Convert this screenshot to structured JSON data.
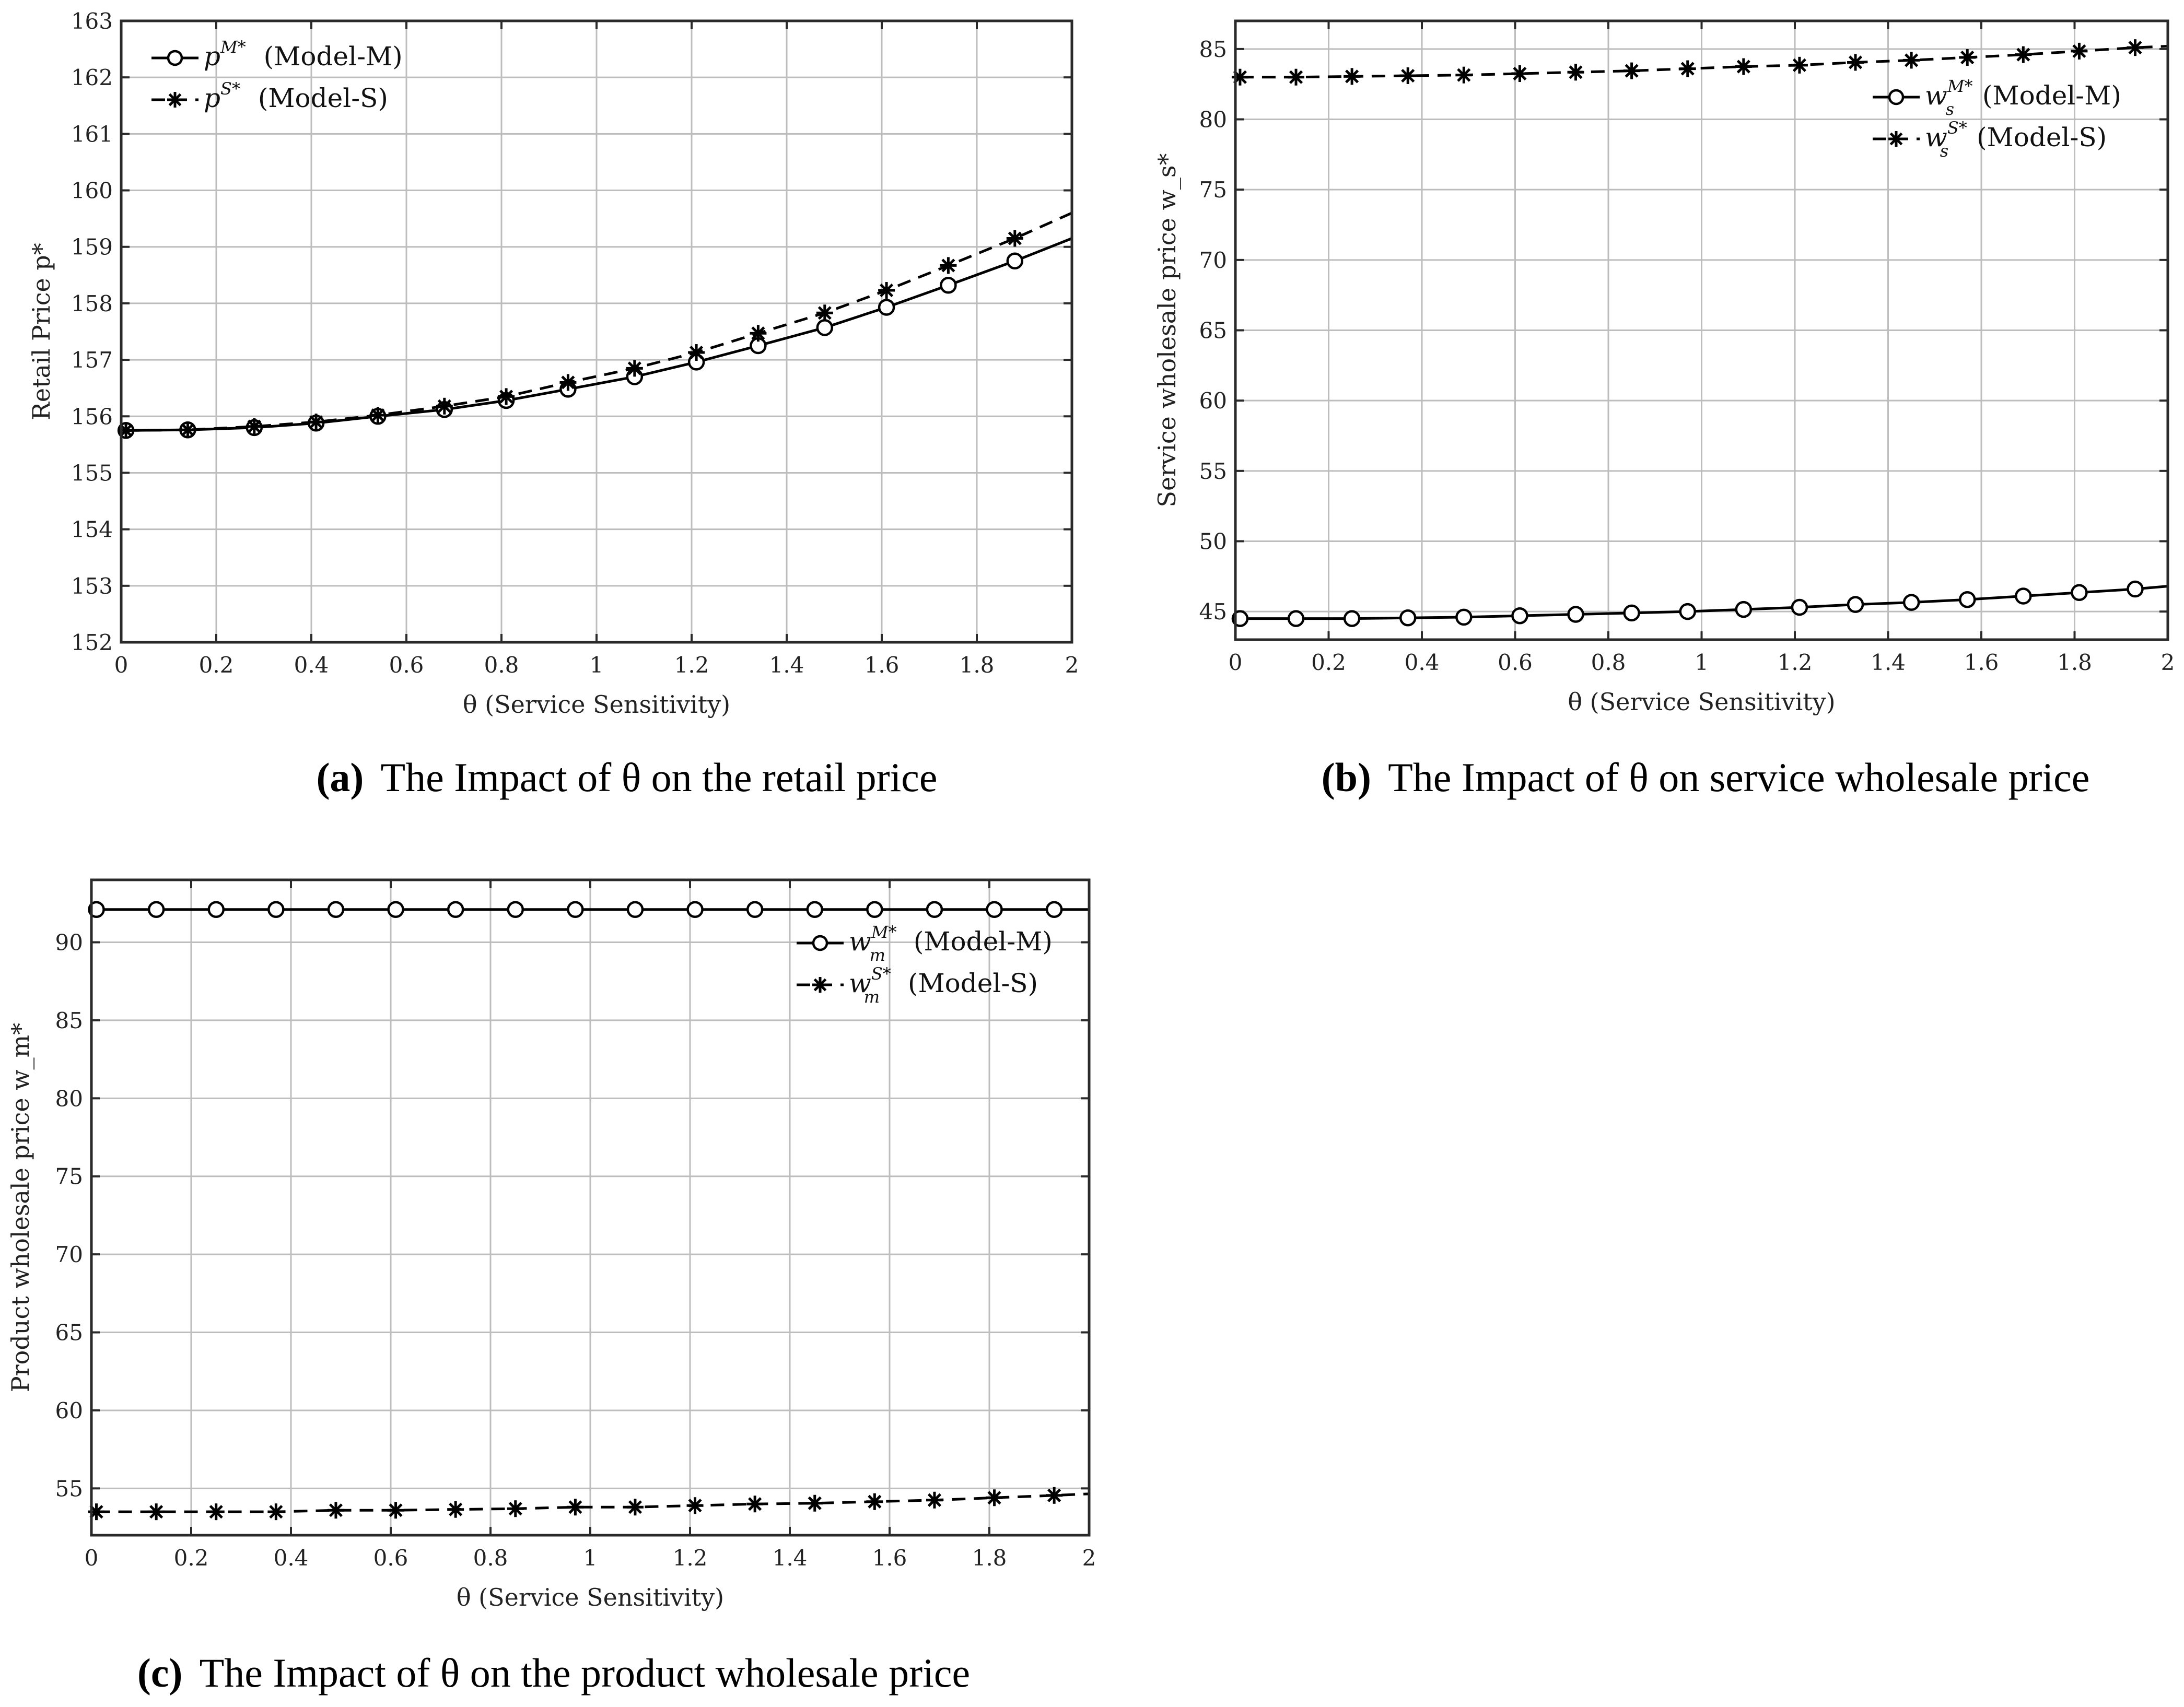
{
  "chart_data": [
    {
      "id": "a",
      "type": "line",
      "caption_label": "(a)",
      "caption_text": "The Impact of θ on the retail price",
      "title": "",
      "xlabel": "θ (Service Sensitivity)",
      "ylabel": "Retail Price p*",
      "xlim": [
        0,
        2
      ],
      "ylim": [
        152,
        163
      ],
      "xticks": [
        0,
        0.2,
        0.4,
        0.6,
        0.8,
        1,
        1.2,
        1.4,
        1.6,
        1.8,
        2
      ],
      "yticks": [
        152,
        153,
        154,
        155,
        156,
        157,
        158,
        159,
        160,
        161,
        162,
        163
      ],
      "grid": true,
      "legend_position": "upper left",
      "series": [
        {
          "name": "p^{M*} (Model-M)",
          "legend_symbol": "p",
          "legend_sup": "M*",
          "legend_sub": "",
          "legend_model": "(Model-M)",
          "marker": "circle",
          "linestyle": "solid",
          "x": [
            0.01,
            0.14,
            0.28,
            0.41,
            0.54,
            0.68,
            0.81,
            0.94,
            1.08,
            1.21,
            1.34,
            1.48,
            1.61,
            1.74,
            1.88,
            2.0
          ],
          "values": [
            155.75,
            155.76,
            155.8,
            155.88,
            156.0,
            156.12,
            156.28,
            156.48,
            156.7,
            156.96,
            157.25,
            157.57,
            157.93,
            158.32,
            158.75,
            159.15
          ],
          "marker_count": 15
        },
        {
          "name": "p^{S*} (Model-S)",
          "legend_symbol": "p",
          "legend_sup": "S*",
          "legend_sub": "",
          "legend_model": "(Model-S)",
          "marker": "star",
          "linestyle": "dashed",
          "x": [
            0.01,
            0.14,
            0.28,
            0.41,
            0.54,
            0.68,
            0.81,
            0.94,
            1.08,
            1.21,
            1.34,
            1.48,
            1.61,
            1.74,
            1.88,
            2.0
          ],
          "values": [
            155.75,
            155.76,
            155.82,
            155.9,
            156.02,
            156.18,
            156.35,
            156.6,
            156.85,
            157.13,
            157.47,
            157.83,
            158.23,
            158.67,
            159.15,
            159.6
          ],
          "marker_count": 15
        }
      ]
    },
    {
      "id": "b",
      "type": "line",
      "caption_label": "(b)",
      "caption_text": "The Impact of θ on service wholesale price",
      "title": "",
      "xlabel": "θ (Service Sensitivity)",
      "ylabel": "Service wholesale price w_s*",
      "xlim": [
        0,
        2
      ],
      "ylim": [
        43,
        87
      ],
      "xticks": [
        0,
        0.2,
        0.4,
        0.6,
        0.8,
        1,
        1.2,
        1.4,
        1.6,
        1.8,
        2
      ],
      "yticks": [
        45,
        50,
        55,
        60,
        65,
        70,
        75,
        80,
        85
      ],
      "grid": true,
      "legend_position": "upper right",
      "series": [
        {
          "name": "w_s^{M*} (Model-M)",
          "legend_symbol": "w",
          "legend_sup": "M*",
          "legend_sub": "s",
          "legend_model": "(Model-M)",
          "marker": "circle",
          "linestyle": "solid",
          "x": [
            0.01,
            0.13,
            0.25,
            0.37,
            0.49,
            0.61,
            0.73,
            0.85,
            0.97,
            1.09,
            1.21,
            1.33,
            1.45,
            1.57,
            1.69,
            1.81,
            1.93,
            2.0
          ],
          "values": [
            44.5,
            44.5,
            44.5,
            44.55,
            44.6,
            44.7,
            44.8,
            44.9,
            45.0,
            45.15,
            45.3,
            45.5,
            45.65,
            45.85,
            46.1,
            46.35,
            46.6,
            46.8
          ],
          "marker_count": 17
        },
        {
          "name": "w_s^{S*} (Model-S)",
          "legend_symbol": "w",
          "legend_sup": "S*",
          "legend_sub": "s",
          "legend_model": "(Model-S)",
          "marker": "star",
          "linestyle": "dashed",
          "x": [
            0.01,
            0.13,
            0.25,
            0.37,
            0.49,
            0.61,
            0.73,
            0.85,
            0.97,
            1.09,
            1.21,
            1.33,
            1.45,
            1.57,
            1.69,
            1.81,
            1.93,
            2.0
          ],
          "values": [
            83.0,
            83.0,
            83.05,
            83.1,
            83.15,
            83.25,
            83.35,
            83.45,
            83.6,
            83.75,
            83.85,
            84.05,
            84.2,
            84.4,
            84.6,
            84.85,
            85.1,
            85.2
          ],
          "marker_count": 17
        }
      ]
    },
    {
      "id": "c",
      "type": "line",
      "caption_label": "(c)",
      "caption_text": "The Impact of θ on the product wholesale price",
      "title": "",
      "xlabel": "θ (Service Sensitivity)",
      "ylabel": "Product wholesale price w_m*",
      "xlim": [
        0,
        2
      ],
      "ylim": [
        52,
        94
      ],
      "xticks": [
        0,
        0.2,
        0.4,
        0.6,
        0.8,
        1,
        1.2,
        1.4,
        1.6,
        1.8,
        2
      ],
      "yticks": [
        55,
        60,
        65,
        70,
        75,
        80,
        85,
        90
      ],
      "grid": true,
      "legend_position": "upper right",
      "series": [
        {
          "name": "w_m^{M*} (Model-M)",
          "legend_symbol": "w",
          "legend_sup": "M*",
          "legend_sub": "m",
          "legend_model": "(Model-M)",
          "marker": "circle",
          "linestyle": "solid",
          "x": [
            0.01,
            0.13,
            0.25,
            0.37,
            0.49,
            0.61,
            0.73,
            0.85,
            0.97,
            1.09,
            1.21,
            1.33,
            1.45,
            1.57,
            1.69,
            1.81,
            1.93,
            2.0
          ],
          "values": [
            92.1,
            92.1,
            92.1,
            92.1,
            92.1,
            92.1,
            92.1,
            92.1,
            92.1,
            92.1,
            92.1,
            92.1,
            92.1,
            92.1,
            92.1,
            92.1,
            92.1,
            92.1
          ],
          "marker_count": 17
        },
        {
          "name": "w_m^{S*} (Model-S)",
          "legend_symbol": "w",
          "legend_sup": "S*",
          "legend_sub": "m",
          "legend_model": "(Model-S)",
          "marker": "star",
          "linestyle": "dashed",
          "x": [
            0.01,
            0.13,
            0.25,
            0.37,
            0.49,
            0.61,
            0.73,
            0.85,
            0.97,
            1.09,
            1.21,
            1.33,
            1.45,
            1.57,
            1.69,
            1.81,
            1.93,
            2.0
          ],
          "values": [
            53.5,
            53.5,
            53.5,
            53.5,
            53.6,
            53.6,
            53.65,
            53.7,
            53.8,
            53.8,
            53.9,
            54.0,
            54.05,
            54.15,
            54.25,
            54.4,
            54.55,
            54.65
          ],
          "marker_count": 17
        }
      ]
    }
  ],
  "panels": {
    "a": {
      "caption_label": "(a)",
      "caption_text": "The Impact of θ on the retail price"
    },
    "b": {
      "caption_label": "(b)",
      "caption_text": "The Impact of θ on service wholesale price"
    },
    "c": {
      "caption_label": "(c)",
      "caption_text": "The Impact of θ on the product wholesale price"
    }
  },
  "colors": {
    "line": "#000000",
    "grid": "#bdbdbd",
    "frame": "#2a2a2a",
    "background": "#ffffff"
  }
}
